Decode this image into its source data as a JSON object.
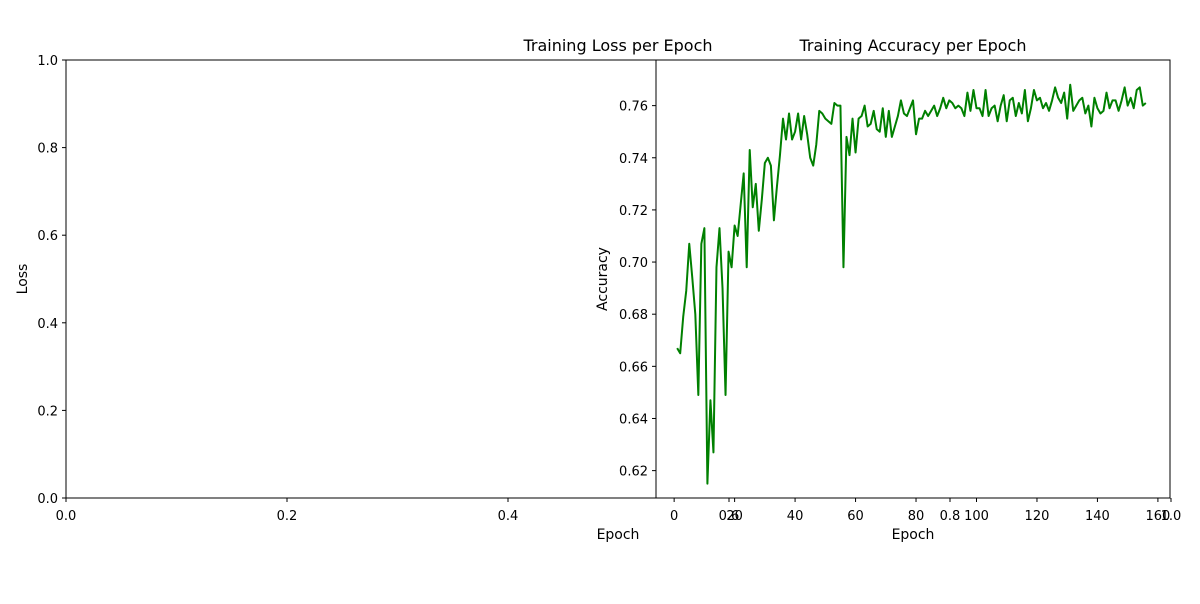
{
  "chart_data": [
    {
      "type": "line",
      "title": "Training Loss per Epoch",
      "xlabel": "Epoch",
      "ylabel": "Loss",
      "xlim": [
        0,
        1
      ],
      "ylim": [
        0,
        1
      ],
      "x_ticks": [
        "0.0",
        "0.2",
        "0.4",
        "0.6",
        "0.8",
        "1.0"
      ],
      "y_ticks": [
        "0.0",
        "0.2",
        "0.4",
        "0.6",
        "0.8",
        "1.0"
      ],
      "series": []
    },
    {
      "type": "line",
      "title": "Training Accuracy per Epoch",
      "xlabel": "Epoch",
      "ylabel": "Accuracy",
      "xlim": [
        -6,
        164
      ],
      "ylim": [
        0.6095,
        0.7775
      ],
      "x_ticks": [
        "0",
        "20",
        "40",
        "60",
        "80",
        "100",
        "120",
        "140",
        "160"
      ],
      "y_ticks": [
        "0.62",
        "0.64",
        "0.66",
        "0.68",
        "0.70",
        "0.72",
        "0.74",
        "0.76"
      ],
      "grid": false,
      "color": "#008000",
      "series": [
        {
          "values": [
            0.667,
            0.665,
            0.679,
            0.689,
            0.707,
            0.694,
            0.68,
            0.649,
            0.707,
            0.713,
            0.615,
            0.647,
            0.627,
            0.698,
            0.713,
            0.69,
            0.649,
            0.704,
            0.698,
            0.714,
            0.71,
            0.722,
            0.734,
            0.698,
            0.743,
            0.721,
            0.73,
            0.712,
            0.724,
            0.738,
            0.74,
            0.737,
            0.716,
            0.729,
            0.741,
            0.755,
            0.747,
            0.757,
            0.747,
            0.75,
            0.757,
            0.747,
            0.756,
            0.749,
            0.74,
            0.737,
            0.745,
            0.758,
            0.757,
            0.755,
            0.754,
            0.753,
            0.761,
            0.76,
            0.76,
            0.698,
            0.748,
            0.741,
            0.755,
            0.742,
            0.755,
            0.756,
            0.76,
            0.752,
            0.753,
            0.758,
            0.751,
            0.75,
            0.759,
            0.748,
            0.758,
            0.748,
            0.752,
            0.756,
            0.762,
            0.757,
            0.756,
            0.759,
            0.762,
            0.749,
            0.755,
            0.755,
            0.758,
            0.756,
            0.758,
            0.76,
            0.756,
            0.759,
            0.763,
            0.759,
            0.762,
            0.761,
            0.759,
            0.76,
            0.759,
            0.756,
            0.765,
            0.758,
            0.766,
            0.759,
            0.759,
            0.756,
            0.766,
            0.756,
            0.759,
            0.76,
            0.754,
            0.76,
            0.764,
            0.754,
            0.762,
            0.763,
            0.756,
            0.761,
            0.757,
            0.766,
            0.754,
            0.759,
            0.766,
            0.762,
            0.763,
            0.759,
            0.761,
            0.758,
            0.762,
            0.767,
            0.763,
            0.761,
            0.765,
            0.755,
            0.768,
            0.758,
            0.76,
            0.762,
            0.763,
            0.757,
            0.76,
            0.752,
            0.763,
            0.759,
            0.757,
            0.758,
            0.765,
            0.759,
            0.762,
            0.762,
            0.758,
            0.762,
            0.767,
            0.76,
            0.763,
            0.759,
            0.766,
            0.767,
            0.76,
            0.761
          ]
        }
      ]
    }
  ]
}
